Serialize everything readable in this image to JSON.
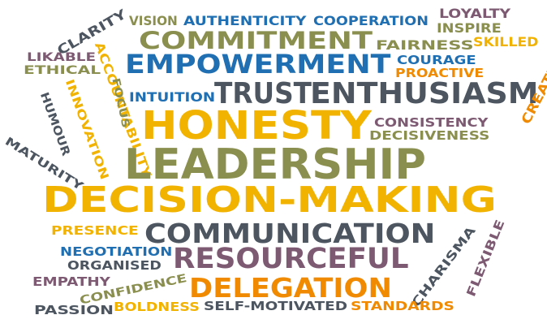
{
  "words": [
    {
      "text": "Vision",
      "color": "#8a8f4f"
    },
    {
      "text": "Authenticity",
      "color": "#1f6fb2"
    },
    {
      "text": "Cooperation",
      "color": "#1f6fb2"
    },
    {
      "text": "Loyalty",
      "color": "#7d5a72"
    },
    {
      "text": "Inspire",
      "color": "#8a8f4f"
    },
    {
      "text": "Clarity",
      "color": "#4d5660"
    },
    {
      "text": "Commitment",
      "color": "#8a8f4f"
    },
    {
      "text": "Fairness",
      "color": "#8a8f4f"
    },
    {
      "text": "Skilled",
      "color": "#f2b200"
    },
    {
      "text": "Likable",
      "color": "#7d5a72"
    },
    {
      "text": "Ethical",
      "color": "#8a8f4f"
    },
    {
      "text": "Empowerment",
      "color": "#1f6fb2"
    },
    {
      "text": "Courage",
      "color": "#1f6fb2"
    },
    {
      "text": "Proactive",
      "color": "#f08a00"
    },
    {
      "text": "Accountability",
      "color": "#f2b200"
    },
    {
      "text": "Focus",
      "color": "#8a8f4f"
    },
    {
      "text": "Intuition",
      "color": "#1f6fb2"
    },
    {
      "text": "Trust",
      "color": "#4d5660"
    },
    {
      "text": "Enthusiasm",
      "color": "#4d5660"
    },
    {
      "text": "Humour",
      "color": "#4d5660"
    },
    {
      "text": "Innovation",
      "color": "#f2b200"
    },
    {
      "text": "Honesty",
      "color": "#f2b200"
    },
    {
      "text": "Consistency",
      "color": "#7d5a72"
    },
    {
      "text": "Decisiveness",
      "color": "#8a8f4f"
    },
    {
      "text": "Creative",
      "color": "#f08a00"
    },
    {
      "text": "Maturity",
      "color": "#4d5660"
    },
    {
      "text": "Leadership",
      "color": "#8a8f4f"
    },
    {
      "text": "Decision-Making",
      "color": "#f2b200"
    },
    {
      "text": "Presence",
      "color": "#f2b200"
    },
    {
      "text": "Communication",
      "color": "#4d5660"
    },
    {
      "text": "Negotiation",
      "color": "#1f6fb2"
    },
    {
      "text": "Organised",
      "color": "#4d5660"
    },
    {
      "text": "Resourceful",
      "color": "#7d5a72"
    },
    {
      "text": "Charisma",
      "color": "#4d5660"
    },
    {
      "text": "Flexible",
      "color": "#7d5a72"
    },
    {
      "text": "Empathy",
      "color": "#7d5a72"
    },
    {
      "text": "Confidence",
      "color": "#8a8f4f"
    },
    {
      "text": "Delegation",
      "color": "#f08a00"
    },
    {
      "text": "Passion",
      "color": "#4d5660"
    },
    {
      "text": "Boldness",
      "color": "#f2b200"
    },
    {
      "text": "Self-Motivated",
      "color": "#4d5660"
    },
    {
      "text": "Standards",
      "color": "#f08a00"
    }
  ]
}
